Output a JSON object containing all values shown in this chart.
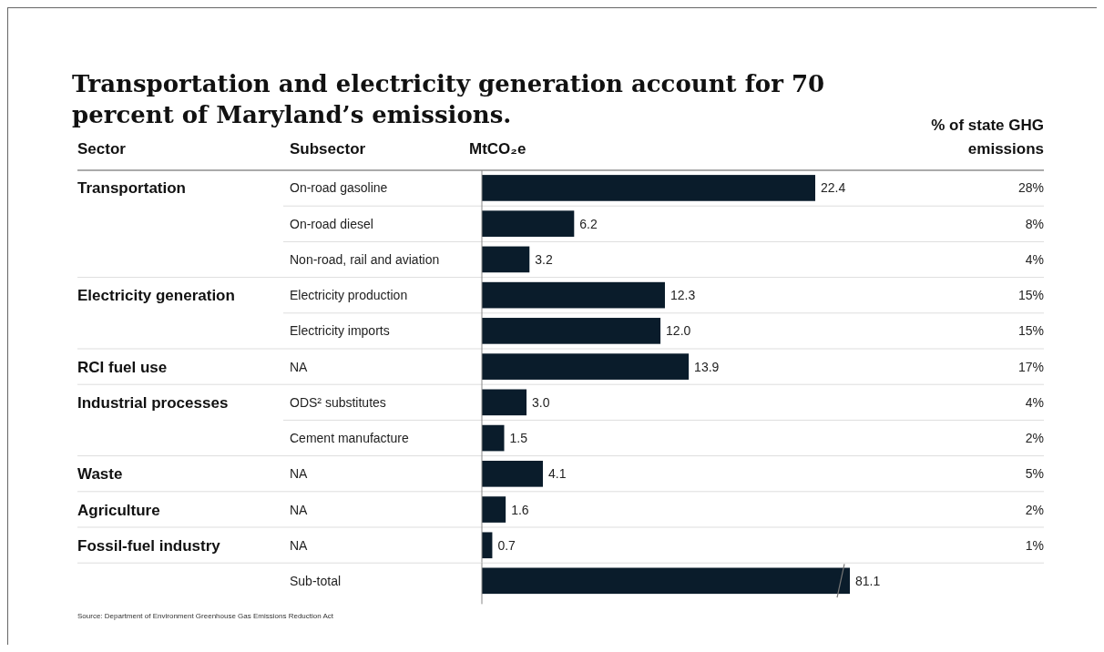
{
  "chart_data": [
    {
      "type": "bar",
      "orientation": "horizontal",
      "title": "Transportation and electricity generation account for 70 percent of Maryland’s emissions.",
      "xlabel": "MtCO₂e",
      "categories": [
        "On-road gasoline",
        "On-road diesel",
        "Non-road, rail and aviation",
        "Electricity production",
        "Electricity imports",
        "NA",
        "ODS² substitutes",
        "Cement manufacture",
        "NA",
        "NA",
        "NA"
      ],
      "y_categories": [
        "Transportation",
        null,
        null,
        "Electricity generation",
        null,
        "RCI fuel use",
        "Industrial processes",
        null,
        "Waste",
        "Agriculture",
        "Fossil-fuel industry"
      ],
      "values": [
        22.4,
        6.2,
        3.2,
        12.3,
        12.0,
        13.9,
        3.0,
        1.5,
        4.1,
        1.6,
        0.7
      ],
      "value_labels": [
        "22.4",
        "6.2",
        "3.2",
        "12.3",
        "12.0",
        "13.9",
        "3.0",
        "1.5",
        "4.1",
        "1.6",
        "0.7"
      ],
      "y2_categories": [
        "28%",
        "8%",
        "4%",
        "15%",
        "15%",
        "17%",
        "4%",
        "2%",
        "5%",
        "2%",
        "1%"
      ],
      "color": "#0a1c2b",
      "annotations": [
        "Sector",
        "Subsector",
        "% of state GHG emissions",
        "Source: Department of Environment Greenhouse Gas Emissions Reduction Act"
      ]
    },
    {
      "type": "bar",
      "orientation": "horizontal",
      "categories": [
        "Sub-total"
      ],
      "values": [
        81.1
      ],
      "value_labels": [
        "81.1"
      ],
      "color": "#0a1c2b"
    }
  ]
}
